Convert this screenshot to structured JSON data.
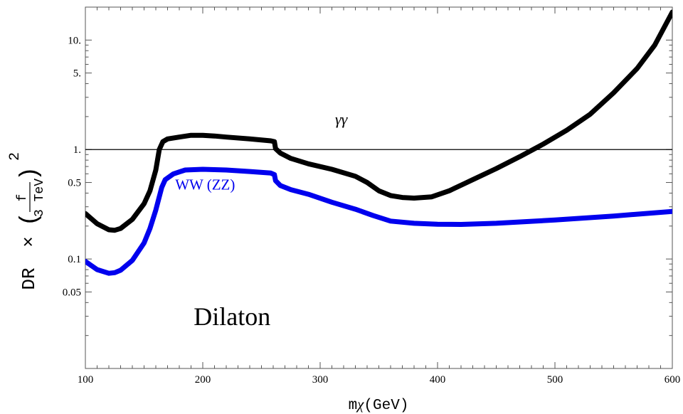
{
  "chart_data": {
    "type": "line",
    "title": "",
    "xlabel": {
      "prefix": "m",
      "symbol": "χ",
      "unit": "(GeV)"
    },
    "ylabel": {
      "prefix": "DR",
      "times": "×",
      "frac_num": "f",
      "frac_den": "3 TeV",
      "exponent": "2"
    },
    "xlim": [
      100,
      600
    ],
    "ylim": [
      0.01,
      20
    ],
    "yscale": "log",
    "grid": false,
    "x_ticks": [
      100,
      200,
      300,
      400,
      500,
      600
    ],
    "x_tick_labels": [
      "100",
      "200",
      "300",
      "400",
      "500",
      "600"
    ],
    "y_ticks": [
      0.05,
      0.1,
      0.5,
      1,
      5,
      10
    ],
    "y_tick_labels": [
      "0.05",
      "0.1",
      "0.5",
      "1.",
      "5.",
      "10."
    ],
    "reference_line": {
      "y": 1,
      "color": "#000000"
    },
    "series": [
      {
        "name": "γγ",
        "color": "#000000",
        "points": [
          [
            100,
            0.26
          ],
          [
            110,
            0.21
          ],
          [
            120,
            0.185
          ],
          [
            125,
            0.183
          ],
          [
            130,
            0.19
          ],
          [
            140,
            0.23
          ],
          [
            150,
            0.32
          ],
          [
            155,
            0.42
          ],
          [
            160,
            0.65
          ],
          [
            163,
            1.0
          ],
          [
            166,
            1.18
          ],
          [
            170,
            1.25
          ],
          [
            180,
            1.3
          ],
          [
            190,
            1.35
          ],
          [
            200,
            1.35
          ],
          [
            210,
            1.33
          ],
          [
            220,
            1.3
          ],
          [
            240,
            1.25
          ],
          [
            258,
            1.2
          ],
          [
            261,
            1.18
          ],
          [
            262,
            1.02
          ],
          [
            266,
            0.93
          ],
          [
            275,
            0.83
          ],
          [
            290,
            0.74
          ],
          [
            310,
            0.66
          ],
          [
            330,
            0.57
          ],
          [
            340,
            0.5
          ],
          [
            350,
            0.42
          ],
          [
            360,
            0.38
          ],
          [
            370,
            0.365
          ],
          [
            380,
            0.36
          ],
          [
            395,
            0.37
          ],
          [
            410,
            0.42
          ],
          [
            430,
            0.53
          ],
          [
            450,
            0.67
          ],
          [
            470,
            0.86
          ],
          [
            490,
            1.12
          ],
          [
            510,
            1.5
          ],
          [
            530,
            2.1
          ],
          [
            550,
            3.3
          ],
          [
            570,
            5.5
          ],
          [
            585,
            9.0
          ],
          [
            600,
            18.0
          ]
        ]
      },
      {
        "name": "WW (ZZ)",
        "color": "#0000ee",
        "points": [
          [
            100,
            0.095
          ],
          [
            110,
            0.08
          ],
          [
            120,
            0.074
          ],
          [
            125,
            0.075
          ],
          [
            130,
            0.079
          ],
          [
            140,
            0.097
          ],
          [
            150,
            0.14
          ],
          [
            155,
            0.19
          ],
          [
            160,
            0.28
          ],
          [
            165,
            0.45
          ],
          [
            168,
            0.53
          ],
          [
            175,
            0.6
          ],
          [
            185,
            0.65
          ],
          [
            200,
            0.66
          ],
          [
            220,
            0.65
          ],
          [
            240,
            0.63
          ],
          [
            258,
            0.61
          ],
          [
            261,
            0.59
          ],
          [
            262,
            0.52
          ],
          [
            266,
            0.47
          ],
          [
            275,
            0.43
          ],
          [
            290,
            0.39
          ],
          [
            310,
            0.33
          ],
          [
            330,
            0.285
          ],
          [
            345,
            0.25
          ],
          [
            360,
            0.222
          ],
          [
            380,
            0.212
          ],
          [
            400,
            0.208
          ],
          [
            420,
            0.207
          ],
          [
            450,
            0.212
          ],
          [
            500,
            0.227
          ],
          [
            550,
            0.247
          ],
          [
            600,
            0.272
          ]
        ]
      }
    ],
    "annotations": [
      {
        "text": "γγ",
        "x": 318,
        "y": 1.7,
        "color": "#000000"
      },
      {
        "text": "WW (ZZ)",
        "x": 202,
        "y": 0.43,
        "color": "#0000ee"
      },
      {
        "text": "Dilaton",
        "x": 225,
        "y": 0.025,
        "color": "#000000"
      }
    ]
  }
}
